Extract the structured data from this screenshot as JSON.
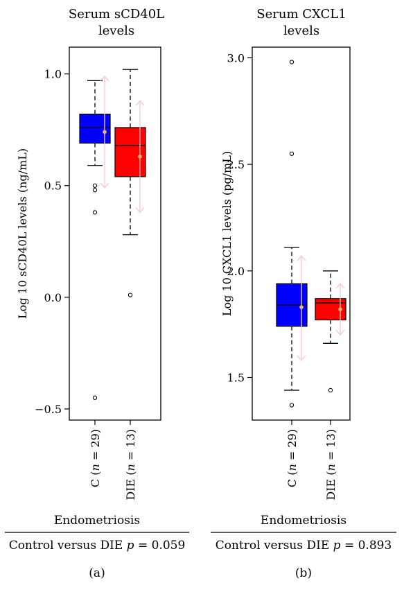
{
  "chart_data": [
    {
      "type": "box",
      "title_lines": [
        "Serum sCD40L",
        "levels"
      ],
      "ylabel": "Log 10 sCD40L levels (ng/mL)",
      "ylim": [
        -0.55,
        1.12
      ],
      "yticks": [
        -0.5,
        0.0,
        0.5,
        1.0
      ],
      "ytick_labels": [
        "−0.5",
        "0.0",
        "0.5",
        "1.0"
      ],
      "grid": false,
      "categories": [
        "C (n = 29)",
        "DIE (n = 13)"
      ],
      "category_parts": [
        {
          "pre": "C (",
          "n": "n",
          "post": " = 29)"
        },
        {
          "pre": "DIE (",
          "n": "n",
          "post": " = 13)"
        }
      ],
      "boxes": [
        {
          "color": "#0000ff",
          "whisker_low": 0.59,
          "q1": 0.69,
          "median": 0.76,
          "q3": 0.82,
          "whisker_high": 0.97,
          "outliers": [
            0.5,
            0.48,
            0.38,
            -0.45
          ],
          "mean": 0.74,
          "sd_low": 0.49,
          "sd_high": 0.99
        },
        {
          "color": "#ff0000",
          "whisker_low": 0.28,
          "q1": 0.54,
          "median": 0.68,
          "q3": 0.76,
          "whisker_high": 1.02,
          "outliers": [
            0.01
          ],
          "mean": 0.63,
          "sd_low": 0.38,
          "sd_high": 0.88
        }
      ],
      "xlabel": "Endometriosis",
      "stat": {
        "prefix": "Control versus DIE ",
        "p": "p",
        "value": " = 0.059"
      },
      "panel_label": "(a)"
    },
    {
      "type": "box",
      "title_lines": [
        "Serum CXCL1",
        "levels"
      ],
      "ylabel": "Log 10 CXCL1 levels (pg/mL)",
      "ylim": [
        1.3,
        3.05
      ],
      "yticks": [
        1.5,
        2.0,
        2.5,
        3.0
      ],
      "ytick_labels": [
        "1.5",
        "2.0",
        "2.5",
        "3.0"
      ],
      "grid": false,
      "categories": [
        "C (n = 29)",
        "DIE (n = 13)"
      ],
      "category_parts": [
        {
          "pre": "C (",
          "n": "n",
          "post": " = 29)"
        },
        {
          "pre": "DIE (",
          "n": "n",
          "post": " = 13)"
        }
      ],
      "boxes": [
        {
          "color": "#0000ff",
          "whisker_low": 1.44,
          "q1": 1.74,
          "median": 1.84,
          "q3": 1.94,
          "whisker_high": 2.11,
          "outliers": [
            1.37,
            2.55,
            2.98
          ],
          "mean": 1.83,
          "sd_low": 1.58,
          "sd_high": 2.07
        },
        {
          "color": "#ff0000",
          "whisker_low": 1.66,
          "q1": 1.77,
          "median": 1.85,
          "q3": 1.87,
          "whisker_high": 2.0,
          "outliers": [
            1.44
          ],
          "mean": 1.82,
          "sd_low": 1.7,
          "sd_high": 1.94
        }
      ],
      "xlabel": "Endometriosis",
      "stat": {
        "prefix": "Control versus DIE ",
        "p": "p",
        "value": " = 0.893"
      },
      "panel_label": "(b)"
    }
  ]
}
